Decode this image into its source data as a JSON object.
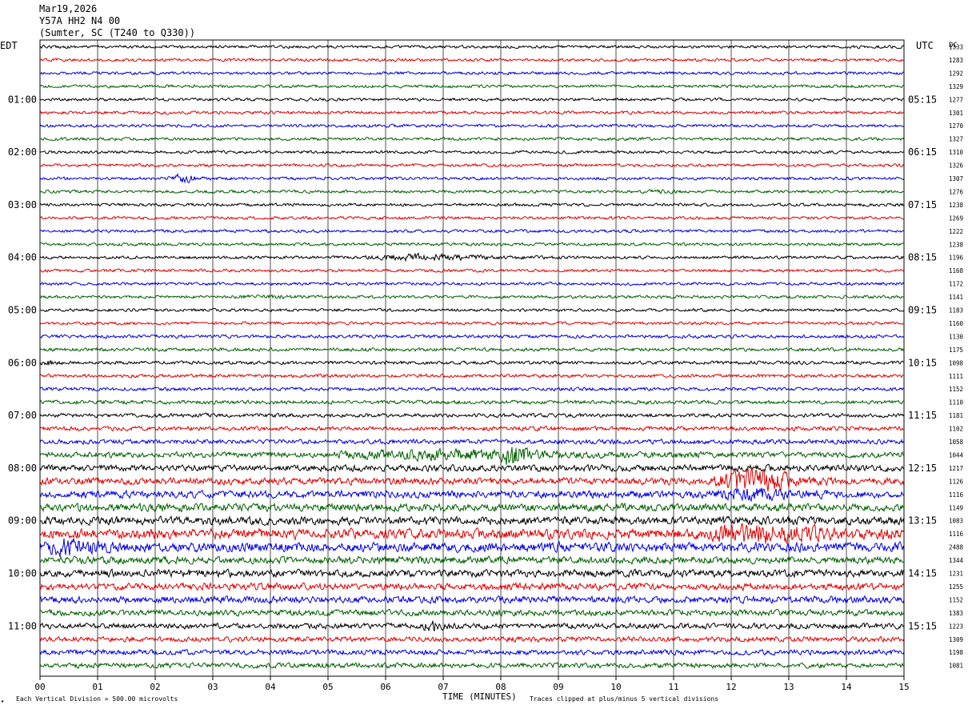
{
  "header": {
    "date": "Mar19,2026",
    "channel": "Y57A HH2 N4 00",
    "location": "(Sumter, SC (T240 to Q330))"
  },
  "left_axis_label": "EDT",
  "right_axis_label": "UTC",
  "dc_label": "DC",
  "footer": {
    "scale_note": "Each Vertical Division =  500.00 microvolts",
    "xlabel": "TIME (MINUTES)",
    "clip_note": "Traces clipped at plus/minus 5 vertical divisions"
  },
  "colors": {
    "cycle": [
      "#000000",
      "#e00000",
      "#0000e0",
      "#006000"
    ],
    "grid": "#000000"
  },
  "chart_data": {
    "type": "line",
    "title": "",
    "xlabel": "TIME (MINUTES)",
    "ylabel": "",
    "xlim": [
      0,
      15
    ],
    "x_ticks": [
      "00",
      "01",
      "02",
      "03",
      "04",
      "05",
      "06",
      "07",
      "08",
      "09",
      "10",
      "11",
      "12",
      "13",
      "14",
      "15"
    ],
    "grid": true,
    "hour_labels_left": [
      "01:00",
      "02:00",
      "03:00",
      "04:00",
      "05:00",
      "06:00",
      "07:00",
      "08:00",
      "09:00",
      "10:00",
      "11:00"
    ],
    "hour_labels_right": [
      "05:15",
      "06:15",
      "07:15",
      "08:15",
      "09:15",
      "10:15",
      "11:15",
      "12:15",
      "13:15",
      "14:15",
      "15:15"
    ],
    "first_hour_row": 4,
    "rows_per_hour": 4,
    "dc_offsets": [
      1333,
      1283,
      1292,
      1329,
      1277,
      1301,
      1270,
      1327,
      1310,
      1326,
      1307,
      1276,
      1238,
      1269,
      1222,
      1238,
      1196,
      1168,
      1172,
      1141,
      1183,
      1160,
      1130,
      1175,
      1098,
      1111,
      1152,
      1110,
      1181,
      1102,
      1058,
      1044,
      1217,
      1126,
      1116,
      1149,
      1083,
      1116,
      2488,
      1344,
      1231,
      1255,
      1152,
      1383,
      1223,
      1309,
      1198,
      1081
    ],
    "row_noise": [
      0.7,
      0.7,
      0.7,
      0.7,
      0.7,
      0.7,
      0.7,
      0.7,
      0.7,
      0.7,
      0.7,
      0.7,
      0.7,
      0.7,
      0.7,
      0.7,
      0.7,
      0.7,
      0.7,
      0.7,
      0.7,
      0.7,
      0.8,
      0.8,
      0.8,
      0.8,
      0.8,
      0.9,
      0.9,
      1.0,
      1.1,
      1.3,
      1.5,
      1.6,
      1.7,
      1.8,
      1.9,
      2.4,
      2.2,
      1.7,
      1.7,
      1.6,
      1.6,
      1.4,
      1.3,
      1.2,
      1.2,
      1.2
    ],
    "events": [
      {
        "row": 10,
        "start_min": 2.2,
        "end_min": 3.0,
        "amp": 1.6
      },
      {
        "row": 11,
        "start_min": 10.4,
        "end_min": 11.6,
        "amp": 0.4
      },
      {
        "row": 16,
        "start_min": 5.5,
        "end_min": 9.0,
        "amp": 1.1
      },
      {
        "row": 19,
        "start_min": 3.0,
        "end_min": 5.5,
        "amp": 0.3
      },
      {
        "row": 24,
        "start_min": 0.0,
        "end_min": 0.4,
        "amp": 0.6
      },
      {
        "row": 31,
        "start_min": 4.8,
        "end_min": 11.5,
        "amp": 1.6
      },
      {
        "row": 31,
        "start_min": 7.9,
        "end_min": 8.8,
        "amp": 5.0
      },
      {
        "row": 33,
        "start_min": 11.6,
        "end_min": 13.8,
        "amp": 5.0
      },
      {
        "row": 34,
        "start_min": 11.6,
        "end_min": 13.8,
        "amp": 2.0
      },
      {
        "row": 37,
        "start_min": 11.3,
        "end_min": 15.0,
        "amp": 3.0
      },
      {
        "row": 38,
        "start_min": 0.0,
        "end_min": 1.5,
        "amp": 2.5
      },
      {
        "row": 44,
        "start_min": 6.6,
        "end_min": 7.3,
        "amp": 1.5
      }
    ]
  }
}
